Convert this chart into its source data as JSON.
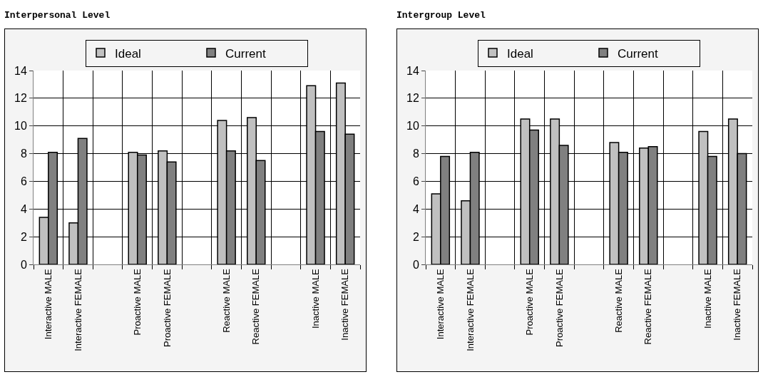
{
  "chart_data": [
    {
      "type": "bar",
      "title": "Interpersonal Level",
      "categories": [
        "Interactive MALE",
        "Interactive FEMALE",
        null,
        "Proactive MALE",
        "Proactive FEMALE",
        null,
        "Reactive MALE",
        "Reactive FEMALE",
        null,
        "Inactive MALE",
        "Inactive FEMALE"
      ],
      "series": [
        {
          "name": "Ideal",
          "color": "#c0c0c0",
          "values": [
            3.4,
            3.0,
            null,
            8.1,
            8.2,
            null,
            10.4,
            10.6,
            null,
            12.9,
            13.1
          ]
        },
        {
          "name": "Current",
          "color": "#808080",
          "values": [
            8.1,
            9.1,
            null,
            7.9,
            7.4,
            null,
            8.2,
            7.5,
            null,
            9.6,
            9.4
          ]
        }
      ],
      "ylim": [
        0,
        14
      ],
      "yticks": [
        0,
        2,
        4,
        6,
        8,
        10,
        12,
        14
      ],
      "grid": true,
      "legend": "top"
    },
    {
      "type": "bar",
      "title": "Intergroup Level",
      "categories": [
        "Interactive MALE",
        "Interactive FEMALE",
        null,
        "Proactive MALE",
        "Proactive FEMALE",
        null,
        "Reactive MALE",
        "Reactive FEMALE",
        null,
        "Inactive MALE",
        "Inactive FEMALE"
      ],
      "series": [
        {
          "name": "Ideal",
          "color": "#c0c0c0",
          "values": [
            5.1,
            4.6,
            null,
            10.5,
            10.5,
            null,
            8.8,
            8.4,
            null,
            9.6,
            10.5
          ]
        },
        {
          "name": "Current",
          "color": "#808080",
          "values": [
            7.8,
            8.1,
            null,
            9.7,
            8.6,
            null,
            8.1,
            8.5,
            null,
            7.8,
            8.0
          ]
        }
      ],
      "ylim": [
        0,
        14
      ],
      "yticks": [
        0,
        2,
        4,
        6,
        8,
        10,
        12,
        14
      ],
      "grid": true,
      "legend": "top"
    }
  ]
}
